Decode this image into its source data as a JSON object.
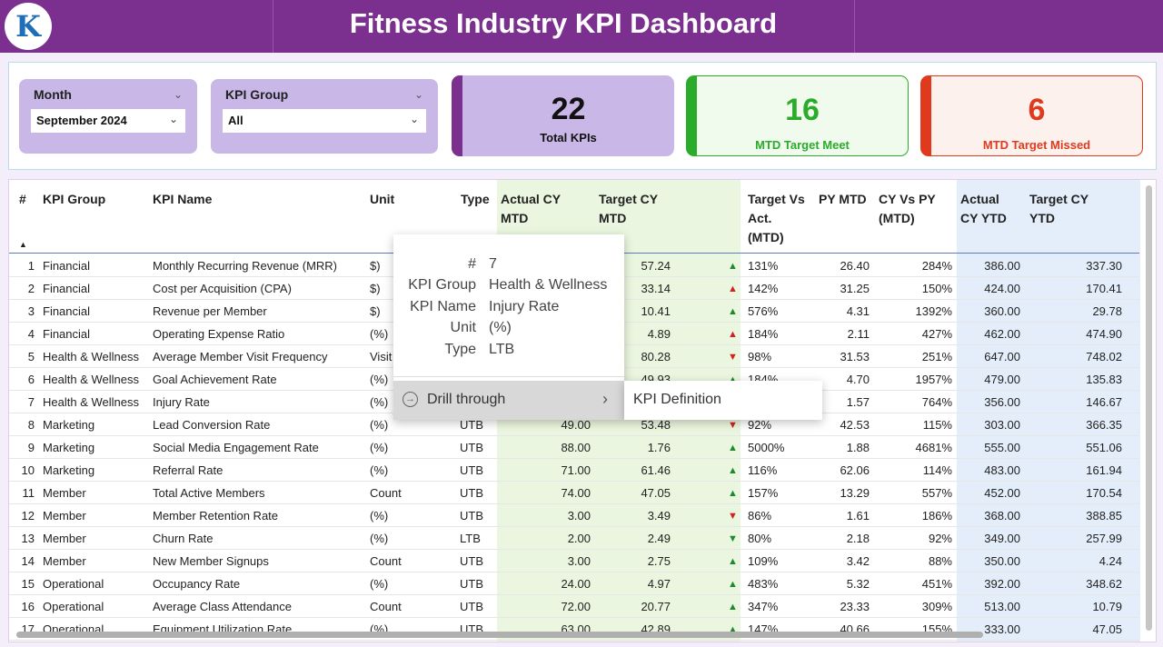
{
  "header": {
    "title": "Fitness Industry KPI Dashboard",
    "logo_letter": "K"
  },
  "filters": {
    "month": {
      "label": "Month",
      "value": "September 2024"
    },
    "kpi_group": {
      "label": "KPI Group",
      "value": "All"
    }
  },
  "cards": {
    "total": {
      "value": "22",
      "caption": "Total KPIs"
    },
    "meet": {
      "value": "16",
      "caption": "MTD Target Meet"
    },
    "missed": {
      "value": "6",
      "caption": "MTD Target Missed"
    }
  },
  "colors": {
    "brand": "#7b2f8e",
    "slicer": "#c8b7e7",
    "meet": "#2aab2a",
    "missed": "#e03a1e"
  },
  "table": {
    "headers": {
      "num": "#",
      "group": "KPI Group",
      "name": "KPI Name",
      "unit": "Unit",
      "type": "Type",
      "actual_mtd_1": "Actual CY",
      "actual_mtd_2": "MTD",
      "target_mtd_1": "Target CY",
      "target_mtd_2": "MTD",
      "tva_1": "Target Vs",
      "tva_2": "Act.",
      "tva_3": "(MTD)",
      "py_mtd": "PY MTD",
      "cyvspy_1": "CY Vs PY",
      "cyvspy_2": "(MTD)",
      "actual_ytd_1": "Actual",
      "actual_ytd_2": "CY YTD",
      "target_ytd_1": "Target CY",
      "target_ytd_2": "YTD"
    },
    "rows": [
      {
        "n": "1",
        "group": "Financial",
        "name": "Monthly Recurring Revenue (MRR)",
        "unit": "$)",
        "type": "",
        "actual": "",
        "target": "57.24",
        "arrow": "▲",
        "dir": "up",
        "tva": "131%",
        "py": "26.40",
        "cvp": "284%",
        "aytd": "386.00",
        "tytd": "337.30"
      },
      {
        "n": "2",
        "group": "Financial",
        "name": "Cost per Acquisition (CPA)",
        "unit": "$)",
        "type": "",
        "actual": "",
        "target": "33.14",
        "arrow": "▲",
        "dir": "down",
        "tva": "142%",
        "py": "31.25",
        "cvp": "150%",
        "aytd": "424.00",
        "tytd": "170.41"
      },
      {
        "n": "3",
        "group": "Financial",
        "name": "Revenue per Member",
        "unit": "$)",
        "type": "",
        "actual": "",
        "target": "10.41",
        "arrow": "▲",
        "dir": "up",
        "tva": "576%",
        "py": "4.31",
        "cvp": "1392%",
        "aytd": "360.00",
        "tytd": "29.78"
      },
      {
        "n": "4",
        "group": "Financial",
        "name": "Operating Expense Ratio",
        "unit": "(%)",
        "type": "",
        "actual": "",
        "target": "4.89",
        "arrow": "▲",
        "dir": "down",
        "tva": "184%",
        "py": "2.11",
        "cvp": "427%",
        "aytd": "462.00",
        "tytd": "474.90"
      },
      {
        "n": "5",
        "group": "Health & Wellness",
        "name": "Average Member Visit Frequency",
        "unit": "Visit",
        "type": "",
        "actual": "",
        "target": "80.28",
        "arrow": "▼",
        "dir": "down",
        "tva": "98%",
        "py": "31.53",
        "cvp": "251%",
        "aytd": "647.00",
        "tytd": "748.02"
      },
      {
        "n": "6",
        "group": "Health & Wellness",
        "name": "Goal Achievement Rate",
        "unit": "(%)",
        "type": "",
        "actual": "",
        "target": "49.93",
        "arrow": "▲",
        "dir": "up",
        "tva": "184%",
        "py": "4.70",
        "cvp": "1957%",
        "aytd": "479.00",
        "tytd": "135.83"
      },
      {
        "n": "7",
        "group": "Health & Wellness",
        "name": "Injury Rate",
        "unit": "(%)",
        "type": "",
        "actual": "",
        "target": "",
        "arrow": "",
        "dir": "up",
        "tva": "",
        "py": "1.57",
        "cvp": "764%",
        "aytd": "356.00",
        "tytd": "146.67"
      },
      {
        "n": "8",
        "group": "Marketing",
        "name": "Lead Conversion Rate",
        "unit": "(%)",
        "type": "UTB",
        "actual": "49.00",
        "target": "53.48",
        "arrow": "▼",
        "dir": "down",
        "tva": "92%",
        "py": "42.53",
        "cvp": "115%",
        "aytd": "303.00",
        "tytd": "366.35"
      },
      {
        "n": "9",
        "group": "Marketing",
        "name": "Social Media Engagement Rate",
        "unit": "(%)",
        "type": "UTB",
        "actual": "88.00",
        "target": "1.76",
        "arrow": "▲",
        "dir": "up",
        "tva": "5000%",
        "py": "1.88",
        "cvp": "4681%",
        "aytd": "555.00",
        "tytd": "551.06"
      },
      {
        "n": "10",
        "group": "Marketing",
        "name": "Referral Rate",
        "unit": "(%)",
        "type": "UTB",
        "actual": "71.00",
        "target": "61.46",
        "arrow": "▲",
        "dir": "up",
        "tva": "116%",
        "py": "62.06",
        "cvp": "114%",
        "aytd": "483.00",
        "tytd": "161.94"
      },
      {
        "n": "11",
        "group": "Member",
        "name": "Total Active Members",
        "unit": "Count",
        "type": "UTB",
        "actual": "74.00",
        "target": "47.05",
        "arrow": "▲",
        "dir": "up",
        "tva": "157%",
        "py": "13.29",
        "cvp": "557%",
        "aytd": "452.00",
        "tytd": "170.54"
      },
      {
        "n": "12",
        "group": "Member",
        "name": "Member Retention Rate",
        "unit": "(%)",
        "type": "UTB",
        "actual": "3.00",
        "target": "3.49",
        "arrow": "▼",
        "dir": "down",
        "tva": "86%",
        "py": "1.61",
        "cvp": "186%",
        "aytd": "368.00",
        "tytd": "388.85"
      },
      {
        "n": "13",
        "group": "Member",
        "name": "Churn Rate",
        "unit": "(%)",
        "type": "LTB",
        "actual": "2.00",
        "target": "2.49",
        "arrow": "▼",
        "dir": "up",
        "tva": "80%",
        "py": "2.18",
        "cvp": "92%",
        "aytd": "349.00",
        "tytd": "257.99"
      },
      {
        "n": "14",
        "group": "Member",
        "name": "New Member Signups",
        "unit": "Count",
        "type": "UTB",
        "actual": "3.00",
        "target": "2.75",
        "arrow": "▲",
        "dir": "up",
        "tva": "109%",
        "py": "3.42",
        "cvp": "88%",
        "aytd": "350.00",
        "tytd": "4.24"
      },
      {
        "n": "15",
        "group": "Operational",
        "name": "Occupancy Rate",
        "unit": "(%)",
        "type": "UTB",
        "actual": "24.00",
        "target": "4.97",
        "arrow": "▲",
        "dir": "up",
        "tva": "483%",
        "py": "5.32",
        "cvp": "451%",
        "aytd": "392.00",
        "tytd": "348.62"
      },
      {
        "n": "16",
        "group": "Operational",
        "name": "Average Class Attendance",
        "unit": "Count",
        "type": "UTB",
        "actual": "72.00",
        "target": "20.77",
        "arrow": "▲",
        "dir": "up",
        "tva": "347%",
        "py": "23.33",
        "cvp": "309%",
        "aytd": "513.00",
        "tytd": "10.79"
      },
      {
        "n": "17",
        "group": "Operational",
        "name": "Equipment Utilization Rate",
        "unit": "(%)",
        "type": "UTB",
        "actual": "63.00",
        "target": "42.89",
        "arrow": "▲",
        "dir": "up",
        "tva": "147%",
        "py": "40.66",
        "cvp": "155%",
        "aytd": "333.00",
        "tytd": "47.05"
      }
    ]
  },
  "tooltip": {
    "num_key": "#",
    "num_val": "7",
    "group_key": "KPI Group",
    "group_val": "Health & Wellness",
    "name_key": "KPI Name",
    "name_val": "Injury Rate",
    "unit_key": "Unit",
    "unit_val": "(%)",
    "type_key": "Type",
    "type_val": "LTB"
  },
  "context_menu": {
    "drill_label": "Drill through",
    "drill_icon": "drill-through-icon",
    "submenu_item": "KPI Definition"
  }
}
